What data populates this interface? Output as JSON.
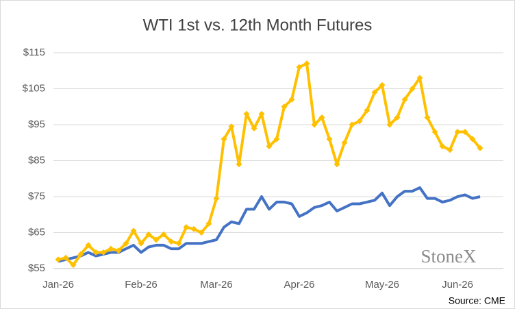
{
  "chart_data": {
    "type": "line",
    "title": "WTI 1st vs. 12th Month Futures",
    "source": "Source: CME",
    "logo": "StoneX",
    "categories": [
      "Jan-26",
      null,
      null,
      null,
      null,
      null,
      null,
      null,
      null,
      null,
      null,
      "Feb-26",
      null,
      null,
      null,
      null,
      null,
      null,
      null,
      null,
      null,
      "Mar-26",
      null,
      null,
      null,
      null,
      null,
      null,
      null,
      null,
      null,
      null,
      "Apr-26",
      null,
      null,
      null,
      null,
      null,
      null,
      null,
      null,
      null,
      null,
      "May-26",
      null,
      null,
      null,
      null,
      null,
      null,
      null,
      null,
      null,
      "Jun-26",
      null,
      null,
      null
    ],
    "series": [
      {
        "color": "#ffc000",
        "values": [
          57.5,
          58,
          56,
          59,
          61.5,
          59.5,
          59.5,
          60.5,
          60,
          62,
          65.5,
          62,
          64.5,
          63,
          64.5,
          62.5,
          62,
          66.5,
          66,
          65,
          67.5,
          74.5,
          91,
          94.5,
          84,
          98,
          94,
          98,
          89,
          91,
          100,
          102,
          111,
          112,
          95,
          97,
          91,
          84,
          90,
          95,
          96,
          99,
          104,
          106,
          95,
          97,
          102,
          105,
          108,
          97,
          93,
          89,
          88,
          93,
          93,
          91,
          88.5
        ]
      },
      {
        "color": "#4472c4",
        "values": [
          57,
          57.5,
          58,
          58.5,
          59.5,
          58.5,
          59,
          59.5,
          59.5,
          60.5,
          61.5,
          59.5,
          61,
          61.5,
          61.5,
          60.5,
          60.5,
          62,
          62,
          62,
          62.5,
          63,
          66.5,
          68,
          67.5,
          71.5,
          71.5,
          75,
          71.5,
          73.5,
          73.5,
          73,
          69.5,
          70.5,
          72,
          72.5,
          73.5,
          71,
          72,
          73,
          73,
          73.5,
          74,
          76,
          72.5,
          75,
          76.5,
          76.5,
          77.5,
          74.5,
          74.5,
          73.5,
          74,
          75,
          75.5,
          74.5,
          75
        ]
      }
    ],
    "ylim": [
      55,
      115
    ],
    "yticks": [
      {
        "value": 55,
        "label": "$55"
      },
      {
        "value": 65,
        "label": "$65"
      },
      {
        "value": 75,
        "label": "$75"
      },
      {
        "value": 85,
        "label": "$85"
      },
      {
        "value": 95,
        "label": "$95"
      },
      {
        "value": 105,
        "label": "$105"
      },
      {
        "value": 115,
        "label": "$115"
      }
    ],
    "grid": true
  }
}
